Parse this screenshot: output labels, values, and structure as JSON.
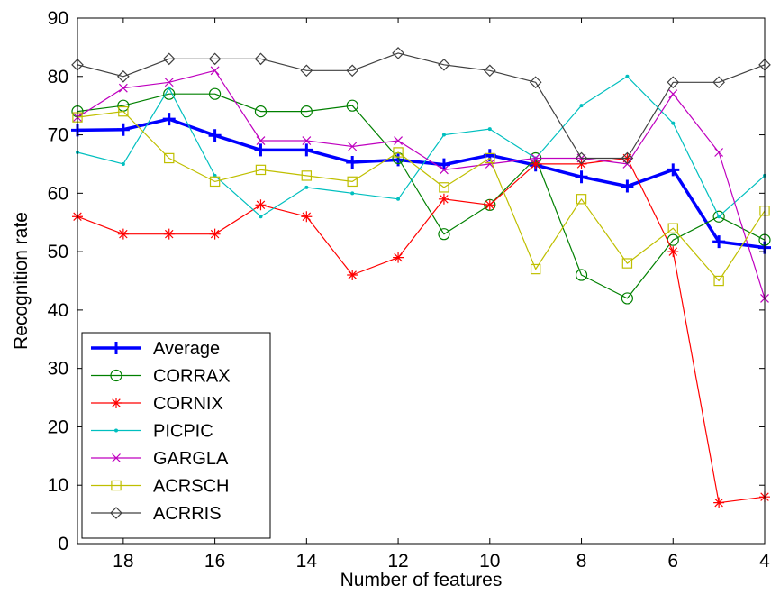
{
  "chart_data": {
    "type": "line",
    "xlabel": "Number of features",
    "ylabel": "Recognition rate",
    "xlim": [
      19,
      4
    ],
    "ylim": [
      0,
      90
    ],
    "x_reversed": true,
    "xticks": [
      18,
      16,
      14,
      12,
      10,
      8,
      6,
      4
    ],
    "yticks": [
      0,
      10,
      20,
      30,
      40,
      50,
      60,
      70,
      80,
      90
    ],
    "grid": false,
    "legend_position": "bottom-left",
    "x": [
      19,
      18,
      17,
      16,
      15,
      14,
      13,
      12,
      11,
      10,
      9,
      8,
      7,
      6,
      5,
      4
    ],
    "series": [
      {
        "name": "Average",
        "color": "#0000ff",
        "marker": "plus",
        "bold": true,
        "values": [
          70.8,
          70.9,
          72.7,
          69.9,
          67.4,
          67.4,
          65.3,
          65.7,
          64.9,
          66.5,
          64.8,
          62.8,
          61.2,
          64.0,
          51.7,
          50.7
        ]
      },
      {
        "name": "CORRAX",
        "color": "#008000",
        "marker": "circle",
        "bold": false,
        "values": [
          74,
          75,
          77,
          77,
          74,
          74,
          75,
          66,
          53,
          58,
          66,
          46,
          42,
          52,
          56,
          52
        ]
      },
      {
        "name": "CORNIX",
        "color": "#ff0000",
        "marker": "asterisk",
        "bold": false,
        "values": [
          56,
          53,
          53,
          53,
          58,
          56,
          46,
          49,
          59,
          58,
          65,
          65,
          66,
          50,
          7,
          8
        ]
      },
      {
        "name": "PICPIC",
        "color": "#00bfbf",
        "marker": "dot",
        "bold": false,
        "values": [
          67,
          65,
          78,
          63,
          56,
          61,
          60,
          59,
          70,
          71,
          66,
          75,
          80,
          72,
          56,
          63
        ]
      },
      {
        "name": "GARGLA",
        "color": "#bf00bf",
        "marker": "x",
        "bold": false,
        "values": [
          73,
          78,
          79,
          81,
          69,
          69,
          68,
          69,
          64,
          65,
          66,
          66,
          65,
          77,
          67,
          42
        ]
      },
      {
        "name": "ACRSCH",
        "color": "#bfbf00",
        "marker": "square",
        "bold": false,
        "values": [
          73,
          74,
          66,
          62,
          64,
          63,
          62,
          67,
          61,
          66,
          47,
          59,
          48,
          54,
          45,
          57
        ]
      },
      {
        "name": "ACRRIS",
        "color": "#404040",
        "marker": "diamond",
        "bold": false,
        "values": [
          82,
          80,
          83,
          83,
          83,
          81,
          81,
          84,
          82,
          81,
          79,
          66,
          66,
          79,
          79,
          82
        ]
      }
    ]
  }
}
